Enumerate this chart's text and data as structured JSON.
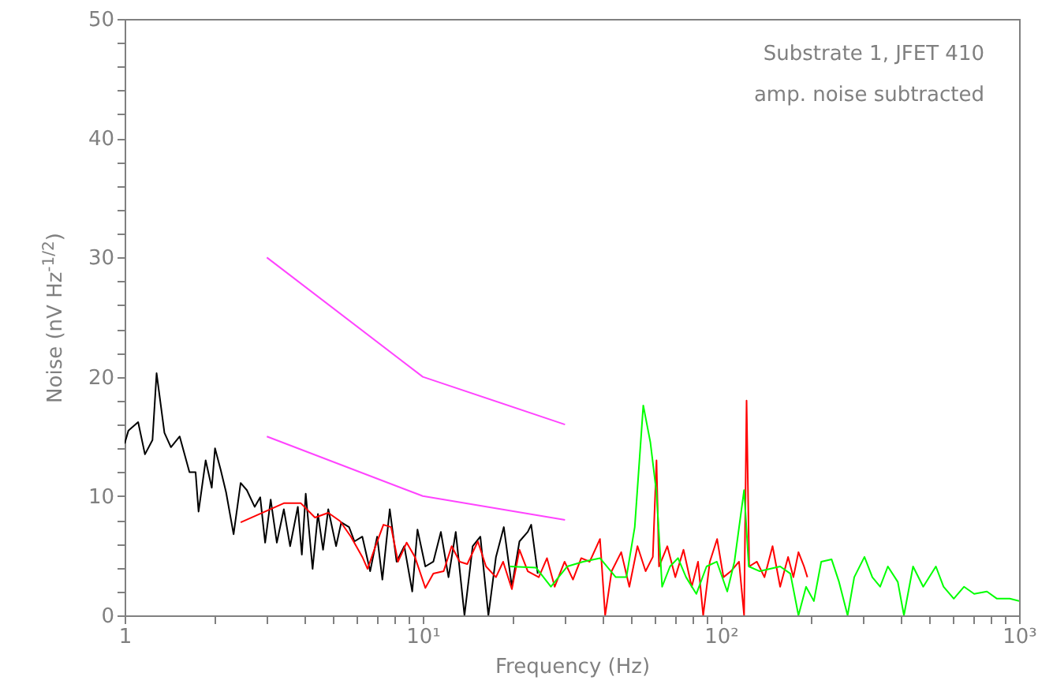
{
  "chart_data": {
    "type": "line",
    "xlabel": "Frequency (Hz)",
    "ylabel": "Noise (nV Hz$^{-1/2}$)",
    "log": "x",
    "grid": false,
    "xlim": [
      1,
      1000
    ],
    "ylim": [
      0,
      50
    ],
    "xticks": [
      {
        "value": 1,
        "label": "1"
      },
      {
        "value": 2,
        "label": null
      },
      {
        "value": 3,
        "label": null
      },
      {
        "value": 4,
        "label": null
      },
      {
        "value": 5,
        "label": null
      },
      {
        "value": 6,
        "label": null
      },
      {
        "value": 7,
        "label": null
      },
      {
        "value": 8,
        "label": null
      },
      {
        "value": 9,
        "label": null
      },
      {
        "value": 10,
        "label": "10¹"
      },
      {
        "value": 20,
        "label": null
      },
      {
        "value": 30,
        "label": null
      },
      {
        "value": 40,
        "label": null
      },
      {
        "value": 50,
        "label": null
      },
      {
        "value": 60,
        "label": null
      },
      {
        "value": 70,
        "label": null
      },
      {
        "value": 80,
        "label": null
      },
      {
        "value": 90,
        "label": null
      },
      {
        "value": 100,
        "label": "10²"
      },
      {
        "value": 200,
        "label": null
      },
      {
        "value": 300,
        "label": null
      },
      {
        "value": 400,
        "label": null
      },
      {
        "value": 500,
        "label": null
      },
      {
        "value": 600,
        "label": null
      },
      {
        "value": 700,
        "label": null
      },
      {
        "value": 800,
        "label": null
      },
      {
        "value": 900,
        "label": null
      },
      {
        "value": 1000,
        "label": "10³"
      }
    ],
    "yticks": [
      0,
      {
        "value": 2,
        "label": null
      },
      {
        "value": 4,
        "label": null
      },
      {
        "value": 6,
        "label": null
      },
      {
        "value": 8,
        "label": null
      },
      10,
      {
        "value": 12,
        "label": null
      },
      {
        "value": 14,
        "label": null
      },
      {
        "value": 16,
        "label": null
      },
      {
        "value": 18,
        "label": null
      },
      20,
      {
        "value": 22,
        "label": null
      },
      {
        "value": 24,
        "label": null
      },
      {
        "value": 26,
        "label": null
      },
      {
        "value": 28,
        "label": null
      },
      30,
      {
        "value": 32,
        "label": null
      },
      {
        "value": 34,
        "label": null
      },
      {
        "value": 36,
        "label": null
      },
      {
        "value": 38,
        "label": null
      },
      40,
      {
        "value": 42,
        "label": null
      },
      {
        "value": 44,
        "label": null
      },
      {
        "value": 46,
        "label": null
      },
      {
        "value": 48,
        "label": null
      },
      50
    ],
    "annotations": [
      "Substrate 1, JFET 410",
      "amp. noise subtracted"
    ],
    "series": [
      {
        "color": "#000000",
        "x": [
          1,
          1.03,
          1.11,
          1.17,
          1.24,
          1.28,
          1.36,
          1.43,
          1.53,
          1.65,
          1.73,
          1.77,
          1.87,
          1.96,
          2.01,
          2.1,
          2.19,
          2.32,
          2.45,
          2.57,
          2.73,
          2.85,
          2.96,
          3.09,
          3.24,
          3.42,
          3.59,
          3.81,
          3.93,
          4.05,
          4.27,
          4.45,
          4.63,
          4.82,
          5.12,
          5.33,
          5.66,
          5.9,
          6.27,
          6.66,
          7.03,
          7.32,
          7.75,
          8.17,
          8.67,
          9.22,
          9.6,
          10.2,
          10.85,
          11.5,
          12.2,
          12.9,
          13.8,
          14.7,
          15.6,
          16.6,
          17.6,
          18.7,
          19.9,
          21.1,
          22.5,
          23.1,
          24.3
        ],
        "values": [
          14.4,
          15.5,
          16.2,
          13.5,
          14.7,
          20.3,
          15.3,
          14.1,
          15,
          12,
          12,
          8.7,
          13,
          10.7,
          14,
          12.2,
          10.3,
          6.8,
          11.1,
          10.5,
          9.1,
          9.9,
          6.1,
          9.7,
          6.1,
          8.9,
          5.8,
          9.1,
          5.1,
          10.2,
          3.9,
          8.5,
          5.5,
          8.9,
          5.8,
          7.8,
          7.4,
          6.2,
          6.6,
          3.7,
          6.6,
          3,
          8.9,
          4.5,
          5.8,
          2,
          7.2,
          4.1,
          4.5,
          7,
          3.2,
          7,
          0,
          5.8,
          6.6,
          0,
          4.9,
          7.4,
          2.4,
          6.2,
          7,
          7.6,
          3.5
        ]
      },
      {
        "color": "#ff0000",
        "x": [
          2.45,
          3.42,
          3.9,
          4.35,
          4.82,
          5.28,
          5.74,
          6.27,
          6.53,
          6.94,
          7.38,
          7.83,
          8.26,
          8.83,
          9.41,
          10.2,
          10.85,
          11.75,
          12.5,
          13.3,
          14.1,
          15.3,
          16.3,
          17.6,
          18.6,
          19.9,
          21.1,
          22.5,
          24.5,
          26.1,
          27.7,
          29.9,
          31.9,
          34,
          36.3,
          39.3,
          40.9,
          43,
          46.3,
          49.3,
          52.5,
          55.9,
          59.1,
          60.8,
          62,
          66.1,
          70.3,
          74.9,
          79.8,
          83.8,
          87.2,
          91.8,
          97.1,
          102,
          108,
          115,
          119.6,
          121.9,
          124.4,
          132,
          140,
          149,
          158,
          168,
          175,
          182,
          190,
          195
        ],
        "values": [
          7.8,
          9.4,
          9.4,
          8.2,
          8.6,
          7.9,
          6.6,
          4.9,
          3.9,
          5.8,
          7.6,
          7.4,
          4.5,
          6.1,
          4.9,
          2.3,
          3.5,
          3.7,
          5.8,
          4.5,
          4.3,
          6.2,
          4.1,
          3.2,
          4.5,
          2.2,
          5.5,
          3.7,
          3.2,
          4.8,
          2.4,
          4.5,
          3,
          4.8,
          4.5,
          6.4,
          0,
          3.7,
          5.3,
          2.4,
          5.8,
          3.7,
          4.9,
          13,
          4.1,
          5.8,
          3.2,
          5.5,
          2.4,
          4.5,
          0,
          4.5,
          6.4,
          3.2,
          3.7,
          4.5,
          0,
          18,
          4.1,
          4.5,
          3.2,
          5.8,
          2.4,
          4.9,
          3.2,
          5.3,
          4.1,
          3.2
        ]
      },
      {
        "color": "#00ff00",
        "x": [
          19.6,
          24,
          26.9,
          30.5,
          34.5,
          39.3,
          44.4,
          48.2,
          51.4,
          54.9,
          58,
          60.8,
          63.5,
          67.5,
          71.8,
          76.4,
          82.7,
          89.5,
          96.9,
          105,
          111,
          119.6,
          124,
          135,
          146,
          158,
          171,
          182,
          193,
          205,
          217,
          235,
          249,
          266,
          280,
          303,
          322,
          342,
          363,
          392,
          411,
          441,
          477,
          526,
          558,
          604,
          654,
          707,
          780,
          843,
          931,
          1000
        ],
        "values": [
          4.1,
          4,
          2.4,
          4.1,
          4.5,
          4.8,
          3.2,
          3.2,
          7.4,
          17.6,
          14.5,
          10.3,
          2.4,
          4.1,
          4.8,
          3.2,
          1.8,
          4.1,
          4.5,
          2,
          4.5,
          10.5,
          4.1,
          3.7,
          3.9,
          4.1,
          3.5,
          0,
          2.4,
          1.2,
          4.5,
          4.7,
          2.8,
          0,
          3.2,
          4.9,
          3.2,
          2.4,
          4.1,
          2.8,
          0,
          4.1,
          2.4,
          4.1,
          2.4,
          1.4,
          2.4,
          1.8,
          2,
          1.4,
          1.4,
          1.2
        ]
      },
      {
        "color": "#ff44ff",
        "x": [
          3,
          10,
          30
        ],
        "values": [
          30,
          20,
          16
        ]
      },
      {
        "color": "#ff44ff",
        "x": [
          3,
          10,
          30
        ],
        "values": [
          15,
          10,
          8
        ]
      }
    ]
  }
}
